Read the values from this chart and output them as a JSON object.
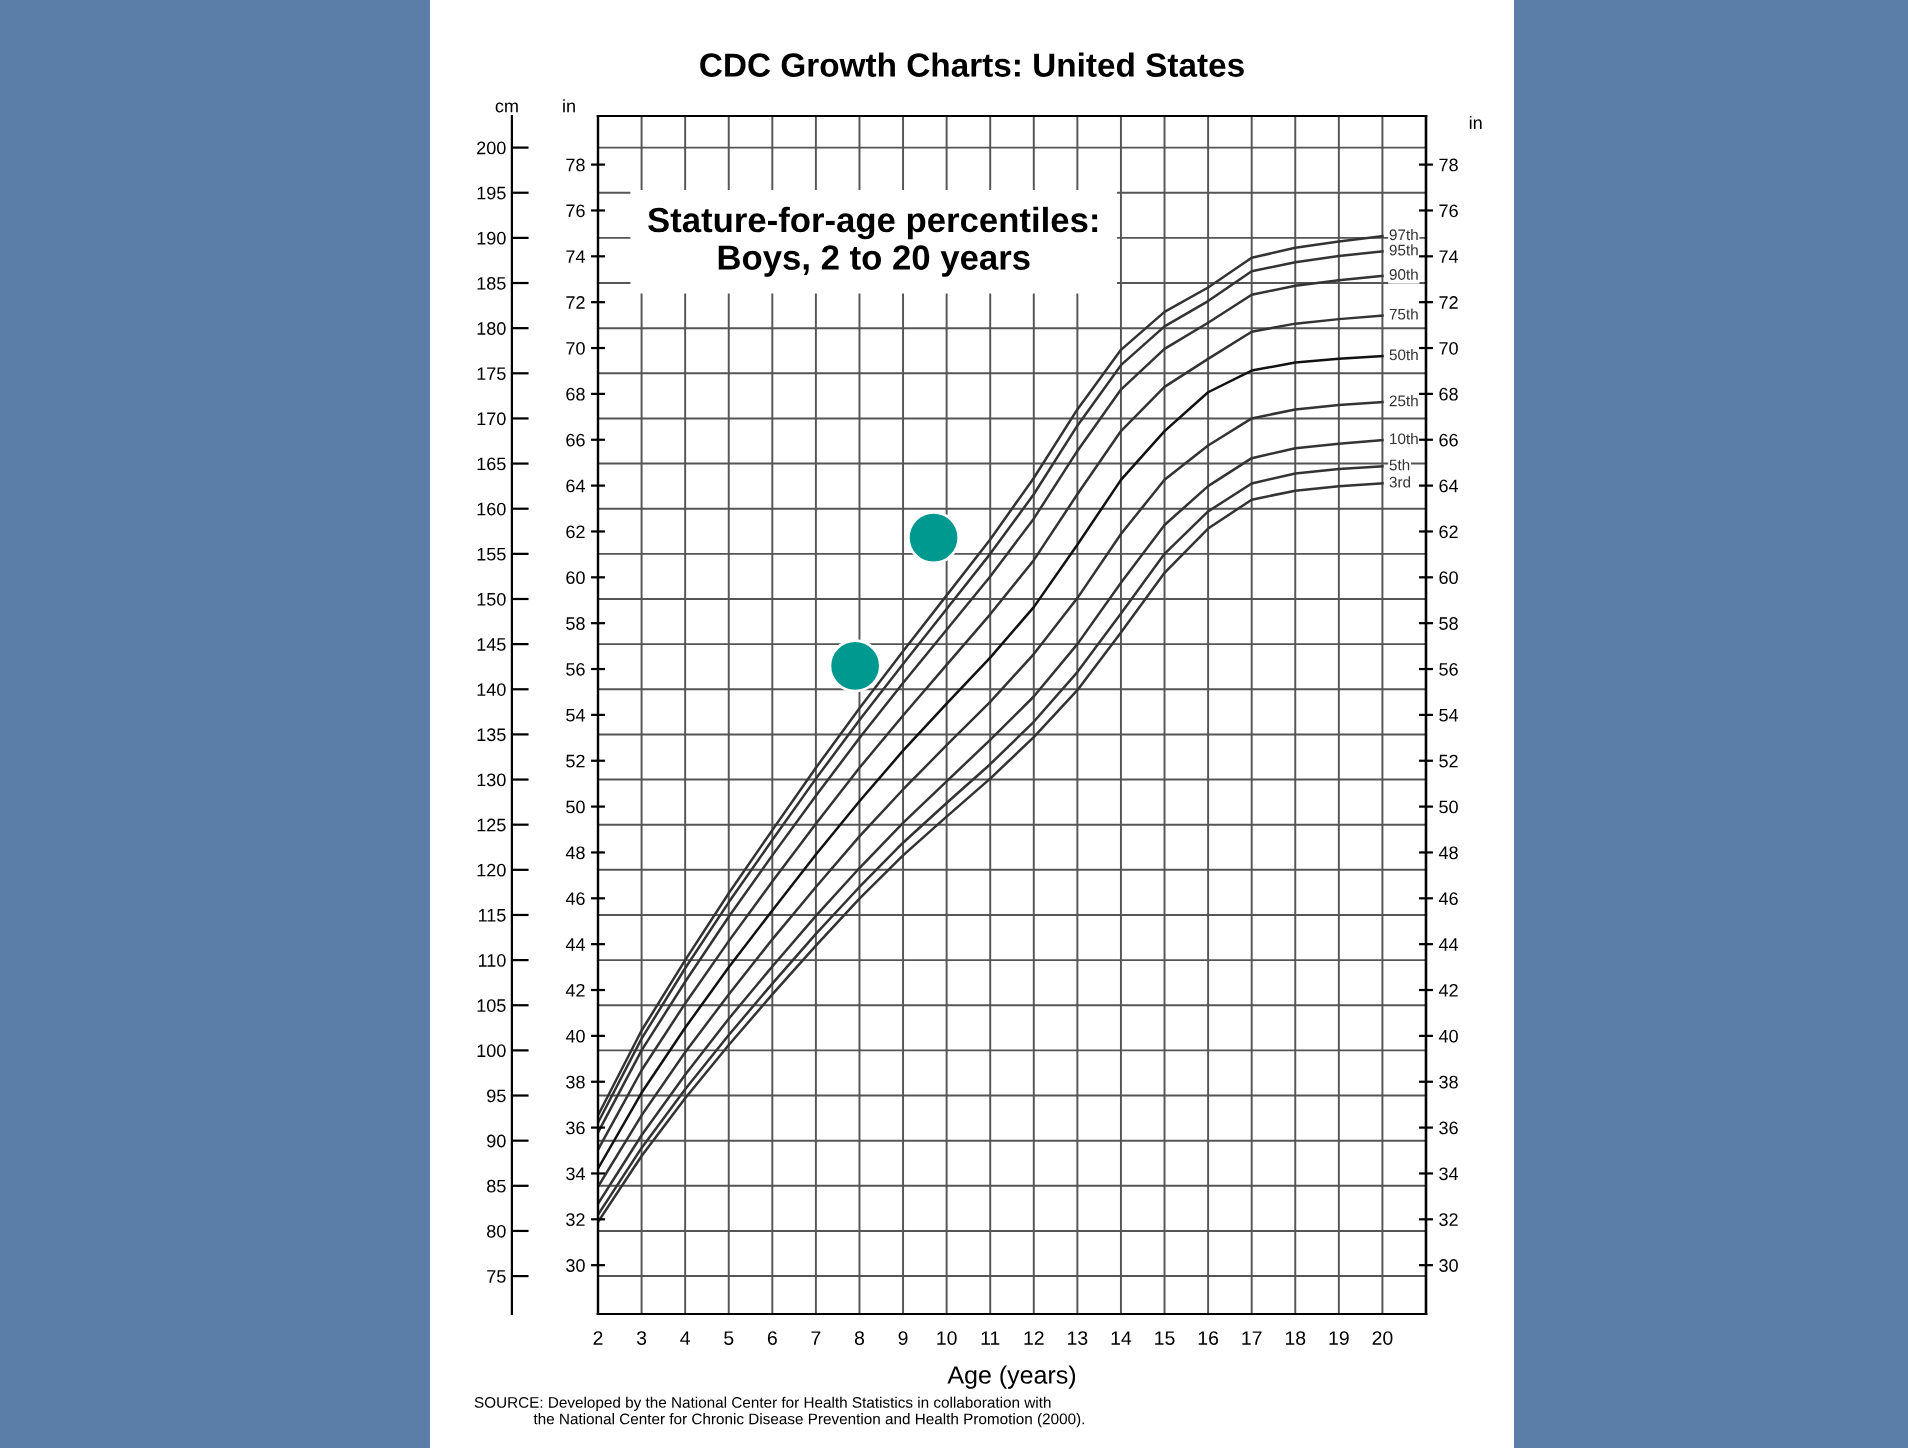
{
  "chart_data": {
    "type": "line",
    "title": "CDC Growth Charts: United States",
    "subtitle": "Stature-for-age percentiles:\nBoys, 2 to 20 years",
    "xlabel": "Age (years)",
    "ylabel": "cm",
    "y2label": "in",
    "y3label": "in",
    "annotations": [
      "SOURCE: Developed by the National Center for Health Statistics in collaboration with\n              the National Center for Chronic Disease Prevention and Health Promotion (2000)."
    ],
    "x": [
      2,
      3,
      4,
      5,
      6,
      7,
      8,
      9,
      10,
      11,
      12,
      13,
      14,
      15,
      16,
      17,
      18,
      19,
      20
    ],
    "series": [
      {
        "name": "3rd",
        "color": "#333333",
        "values": [
          81.0,
          88.3,
          94.7,
          100.6,
          106.2,
          111.6,
          116.8,
          121.6,
          125.9,
          130.1,
          134.7,
          139.9,
          146.3,
          152.9,
          157.8,
          161.0,
          162.0,
          162.5,
          162.8
        ]
      },
      {
        "name": "5th",
        "color": "#333333",
        "values": [
          81.8,
          89.2,
          95.7,
          101.7,
          107.4,
          112.9,
          118.1,
          123.0,
          127.4,
          131.7,
          136.4,
          141.9,
          148.4,
          155.0,
          159.7,
          162.8,
          163.9,
          164.4,
          164.7
        ]
      },
      {
        "name": "10th",
        "color": "#333333",
        "values": [
          83.0,
          90.6,
          97.3,
          103.5,
          109.3,
          114.9,
          120.2,
          125.2,
          129.8,
          134.4,
          139.2,
          145.0,
          151.8,
          158.2,
          162.5,
          165.6,
          166.7,
          167.2,
          167.6
        ]
      },
      {
        "name": "25th",
        "color": "#333333",
        "values": [
          84.9,
          92.8,
          99.8,
          106.2,
          112.3,
          118.1,
          123.7,
          128.9,
          133.8,
          138.6,
          143.9,
          150.1,
          157.2,
          163.2,
          167.0,
          170.0,
          171.0,
          171.5,
          171.8
        ]
      },
      {
        "name": "50th",
        "color": "#111111",
        "values": [
          86.9,
          95.3,
          102.5,
          109.2,
          115.5,
          121.7,
          127.6,
          133.2,
          138.4,
          143.5,
          149.1,
          156.0,
          163.2,
          168.6,
          172.9,
          175.3,
          176.2,
          176.6,
          176.9
        ]
      },
      {
        "name": "75th",
        "color": "#333333",
        "values": [
          89.0,
          97.8,
          105.2,
          112.1,
          118.7,
          125.1,
          131.3,
          137.1,
          142.7,
          148.3,
          154.3,
          161.6,
          168.6,
          173.5,
          176.6,
          179.6,
          180.5,
          181.0,
          181.4
        ]
      },
      {
        "name": "90th",
        "color": "#333333",
        "values": [
          90.9,
          100.0,
          107.6,
          114.8,
          121.6,
          128.2,
          134.6,
          140.7,
          146.6,
          152.5,
          158.9,
          166.4,
          173.2,
          177.7,
          180.6,
          183.7,
          184.7,
          185.3,
          185.8
        ]
      },
      {
        "name": "95th",
        "color": "#333333",
        "values": [
          92.0,
          101.3,
          109.1,
          116.4,
          123.3,
          130.1,
          136.6,
          142.8,
          148.9,
          155.0,
          161.6,
          169.2,
          175.9,
          180.2,
          183.0,
          186.3,
          187.3,
          188.0,
          188.5
        ]
      },
      {
        "name": "97th",
        "color": "#333333",
        "values": [
          92.8,
          102.2,
          110.0,
          117.4,
          124.4,
          131.3,
          137.9,
          144.2,
          150.4,
          156.6,
          163.4,
          171.0,
          177.6,
          181.8,
          184.5,
          187.8,
          188.9,
          189.6,
          190.2
        ]
      },
      {
        "type": "scatter",
        "marker": "circle",
        "color": "#00998f",
        "x": [
          7.9,
          9.7
        ],
        "values": [
          142.6,
          156.8
        ]
      }
    ],
    "xlim": [
      2,
      21
    ],
    "xticks": [
      2,
      3,
      4,
      5,
      6,
      7,
      8,
      9,
      10,
      11,
      12,
      13,
      14,
      15,
      16,
      17,
      18,
      19,
      20
    ],
    "ylim": [
      70.8,
      203.5
    ],
    "yticks": [
      75,
      80,
      85,
      90,
      95,
      100,
      105,
      110,
      115,
      120,
      125,
      130,
      135,
      140,
      145,
      150,
      155,
      160,
      165,
      170,
      175,
      180,
      185,
      190,
      195,
      200
    ],
    "y2lim": [
      27.87,
      80.12
    ],
    "y2ticks": [
      30,
      32,
      34,
      36,
      38,
      40,
      42,
      44,
      46,
      48,
      50,
      52,
      54,
      56,
      58,
      60,
      62,
      64,
      66,
      68,
      70,
      72,
      74,
      76,
      78
    ],
    "y3lim": [
      27.87,
      80.12
    ],
    "y3ticks": [
      30,
      32,
      34,
      36,
      38,
      40,
      42,
      44,
      46,
      48,
      50,
      52,
      54,
      56,
      58,
      60,
      62,
      64,
      66,
      68,
      70,
      72,
      74,
      76,
      78
    ],
    "grid": true,
    "legend": false,
    "marker": "none",
    "line_style": "solid"
  }
}
